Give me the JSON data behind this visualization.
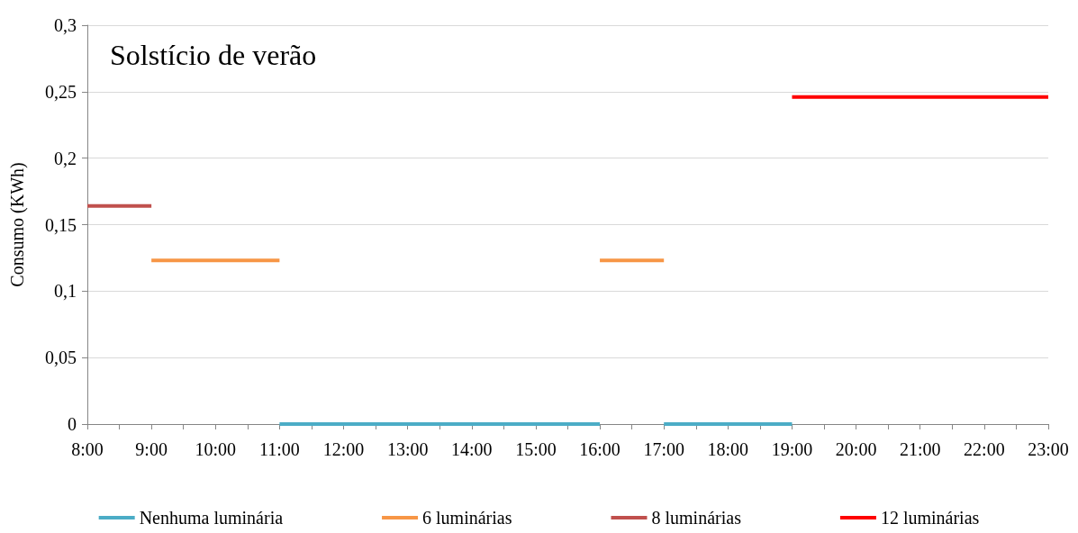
{
  "chart_data": {
    "type": "line",
    "title": "Solstício de verão",
    "ylabel": "Consumo (KWh)",
    "series": [
      {
        "name": "Nenhuma luminária",
        "color": "#4bacc6",
        "x": [
          11,
          16,
          null,
          17,
          19
        ],
        "values": [
          0,
          0,
          null,
          0,
          0
        ]
      },
      {
        "name": "6 luminárias",
        "color": "#f79646",
        "x": [
          9,
          11,
          null,
          16,
          17
        ],
        "values": [
          0.123,
          0.123,
          null,
          0.123,
          0.123
        ]
      },
      {
        "name": "8 luminárias",
        "color": "#c0504d",
        "x": [
          8,
          9
        ],
        "values": [
          0.164,
          0.164
        ]
      },
      {
        "name": "12 luminárias",
        "color": "#ff0000",
        "x": [
          19,
          23
        ],
        "values": [
          0.246,
          0.246
        ]
      }
    ],
    "xlim": [
      8,
      23
    ],
    "xticks": [
      {
        "value": 8,
        "label": "8:00"
      },
      {
        "value": 9,
        "label": "9:00"
      },
      {
        "value": 10,
        "label": "10:00"
      },
      {
        "value": 11,
        "label": "11:00"
      },
      {
        "value": 12,
        "label": "12:00"
      },
      {
        "value": 13,
        "label": "13:00"
      },
      {
        "value": 14,
        "label": "14:00"
      },
      {
        "value": 15,
        "label": "15:00"
      },
      {
        "value": 16,
        "label": "16:00"
      },
      {
        "value": 17,
        "label": "17:00"
      },
      {
        "value": 18,
        "label": "18:00"
      },
      {
        "value": 19,
        "label": "19:00"
      },
      {
        "value": 20,
        "label": "20:00"
      },
      {
        "value": 21,
        "label": "21:00"
      },
      {
        "value": 22,
        "label": "22:00"
      },
      {
        "value": 23,
        "label": "23:00"
      }
    ],
    "ylim": [
      0,
      0.3
    ],
    "yticks": [
      0,
      {
        "value": 0.05,
        "label": "0,05"
      },
      {
        "value": 0.1,
        "label": "0,1"
      },
      {
        "value": 0.15,
        "label": "0,15"
      },
      {
        "value": 0.2,
        "label": "0,2"
      },
      {
        "value": 0.25,
        "label": "0,25"
      },
      {
        "value": 0.3,
        "label": "0,3"
      }
    ],
    "grid": "y",
    "legend": "bottom",
    "marker": "none",
    "line_style": "solid"
  }
}
